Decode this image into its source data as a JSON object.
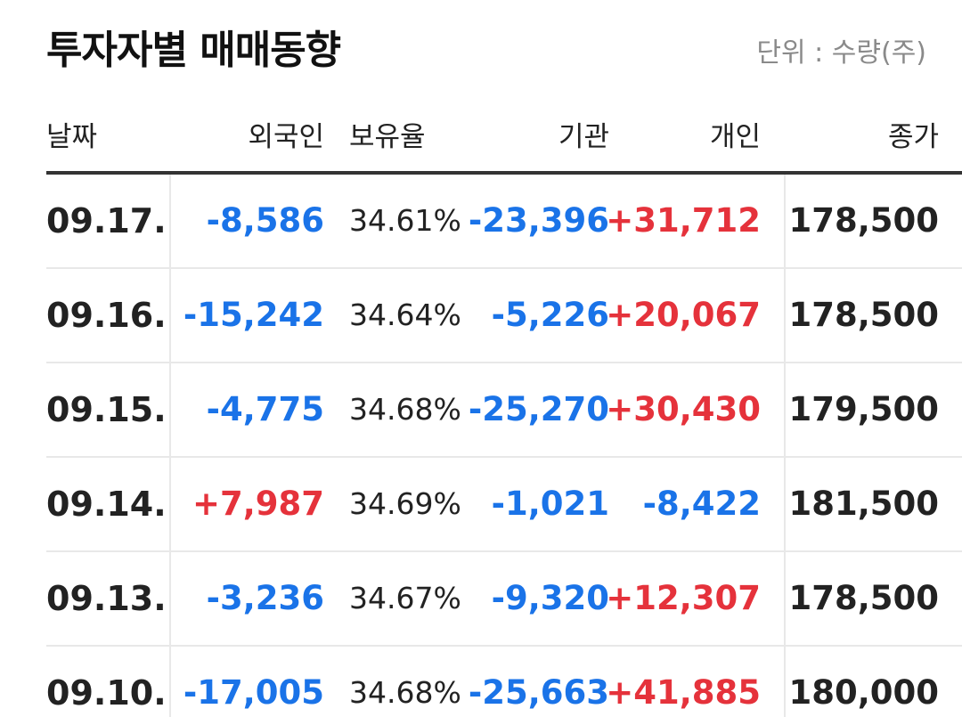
{
  "header": {
    "title": "투자자별 매매동향",
    "unit": "단위 : 수량(주)"
  },
  "columns": {
    "date": "날짜",
    "foreign": "외국인",
    "ratio": "보유율",
    "institution": "기관",
    "individual": "개인",
    "close": "종가"
  },
  "rows": [
    {
      "date": "09.17.",
      "foreign": "-8,586",
      "ratio": "34.61%",
      "institution": "-23,396",
      "individual": "+31,712",
      "close": "178,500"
    },
    {
      "date": "09.16.",
      "foreign": "-15,242",
      "ratio": "34.64%",
      "institution": "-5,226",
      "individual": "+20,067",
      "close": "178,500"
    },
    {
      "date": "09.15.",
      "foreign": "-4,775",
      "ratio": "34.68%",
      "institution": "-25,270",
      "individual": "+30,430",
      "close": "179,500"
    },
    {
      "date": "09.14.",
      "foreign": "+7,987",
      "ratio": "34.69%",
      "institution": "-1,021",
      "individual": "-8,422",
      "close": "181,500"
    },
    {
      "date": "09.13.",
      "foreign": "-3,236",
      "ratio": "34.67%",
      "institution": "-9,320",
      "individual": "+12,307",
      "close": "178,500"
    },
    {
      "date": "09.10.",
      "foreign": "-17,005",
      "ratio": "34.68%",
      "institution": "-25,663",
      "individual": "+41,885",
      "close": "180,000"
    }
  ],
  "colors": {
    "negative": "#1a73e8",
    "positive": "#e5323b"
  }
}
